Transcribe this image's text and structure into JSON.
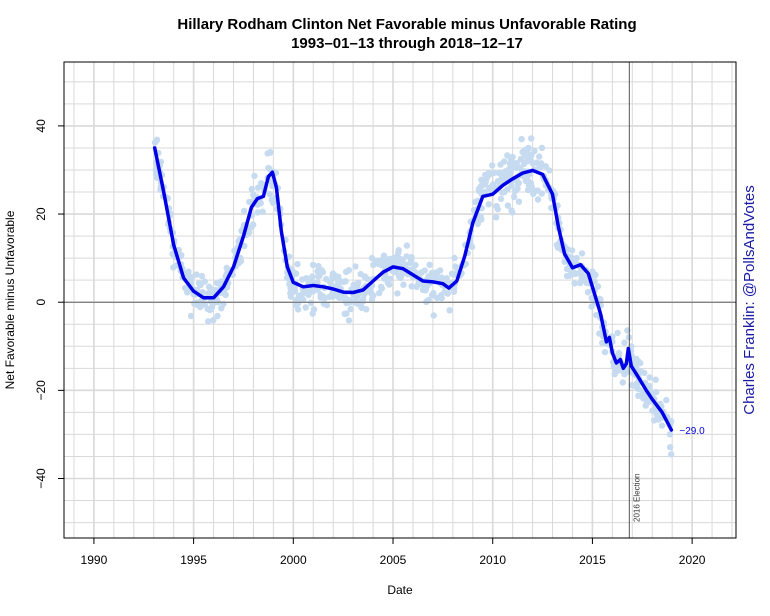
{
  "chart_data": {
    "type": "scatter",
    "title": "Hillary Rodham Clinton Net Favorable minus Unfavorable Rating",
    "subtitle": "1993–01–13 through 2018–12–17",
    "xlabel": "Date",
    "ylabel": "Net Favorable minus Unfavorable",
    "xlim": [
      1988.5,
      2022.2
    ],
    "ylim": [
      -53.5,
      54.5
    ],
    "x_ticks": [
      1990,
      1995,
      2000,
      2005,
      2010,
      2015,
      2020
    ],
    "y_ticks": [
      -40,
      -20,
      0,
      20,
      40
    ],
    "grid": true,
    "zero_line": 0,
    "event": {
      "x": 2016.85,
      "label": "2016 Election"
    },
    "credit": "Charles Franklin: @PollsAndVotes",
    "end_label": "−29.0",
    "colors": {
      "points": "#c6daf0",
      "trend": "#0000e6",
      "grid": "#d9d9d9",
      "event": "#555555"
    },
    "trend": [
      [
        1993.05,
        35
      ],
      [
        1993.5,
        25
      ],
      [
        1994.0,
        13
      ],
      [
        1994.5,
        5.5
      ],
      [
        1995.0,
        2.5
      ],
      [
        1995.5,
        1.0
      ],
      [
        1996.0,
        1.0
      ],
      [
        1996.5,
        3.5
      ],
      [
        1997.0,
        8.0
      ],
      [
        1997.5,
        15.0
      ],
      [
        1997.9,
        21.5
      ],
      [
        1998.2,
        23.5
      ],
      [
        1998.5,
        24.0
      ],
      [
        1998.75,
        28.5
      ],
      [
        1998.95,
        29.5
      ],
      [
        1999.15,
        26.0
      ],
      [
        1999.4,
        16.0
      ],
      [
        1999.7,
        8.0
      ],
      [
        2000.0,
        4.5
      ],
      [
        2000.5,
        3.5
      ],
      [
        2001.0,
        3.8
      ],
      [
        2001.5,
        3.5
      ],
      [
        2002.0,
        3.0
      ],
      [
        2002.5,
        2.3
      ],
      [
        2003.0,
        2.2
      ],
      [
        2003.5,
        2.8
      ],
      [
        2004.0,
        4.8
      ],
      [
        2004.5,
        6.8
      ],
      [
        2005.0,
        8.0
      ],
      [
        2005.5,
        7.6
      ],
      [
        2006.0,
        6.2
      ],
      [
        2006.5,
        4.8
      ],
      [
        2007.0,
        4.6
      ],
      [
        2007.5,
        4.2
      ],
      [
        2007.8,
        3.2
      ],
      [
        2008.2,
        4.8
      ],
      [
        2008.6,
        10.5
      ],
      [
        2009.0,
        18.0
      ],
      [
        2009.5,
        24.0
      ],
      [
        2010.0,
        24.5
      ],
      [
        2010.5,
        26.5
      ],
      [
        2011.0,
        28.0
      ],
      [
        2011.5,
        29.3
      ],
      [
        2012.0,
        29.9
      ],
      [
        2012.5,
        29.0
      ],
      [
        2013.0,
        24.5
      ],
      [
        2013.3,
        17.0
      ],
      [
        2013.6,
        11.0
      ],
      [
        2014.0,
        7.8
      ],
      [
        2014.4,
        8.5
      ],
      [
        2014.8,
        6.5
      ],
      [
        2015.1,
        2.0
      ],
      [
        2015.4,
        -2.5
      ],
      [
        2015.7,
        -9.0
      ],
      [
        2015.85,
        -8.0
      ],
      [
        2016.0,
        -11.5
      ],
      [
        2016.2,
        -13.8
      ],
      [
        2016.4,
        -13.0
      ],
      [
        2016.55,
        -15.0
      ],
      [
        2016.7,
        -14.0
      ],
      [
        2016.8,
        -10.5
      ],
      [
        2016.95,
        -14.5
      ],
      [
        2017.3,
        -17.0
      ],
      [
        2017.7,
        -20.0
      ],
      [
        2018.0,
        -22.0
      ],
      [
        2018.5,
        -25.0
      ],
      [
        2018.96,
        -29.0
      ]
    ]
  }
}
